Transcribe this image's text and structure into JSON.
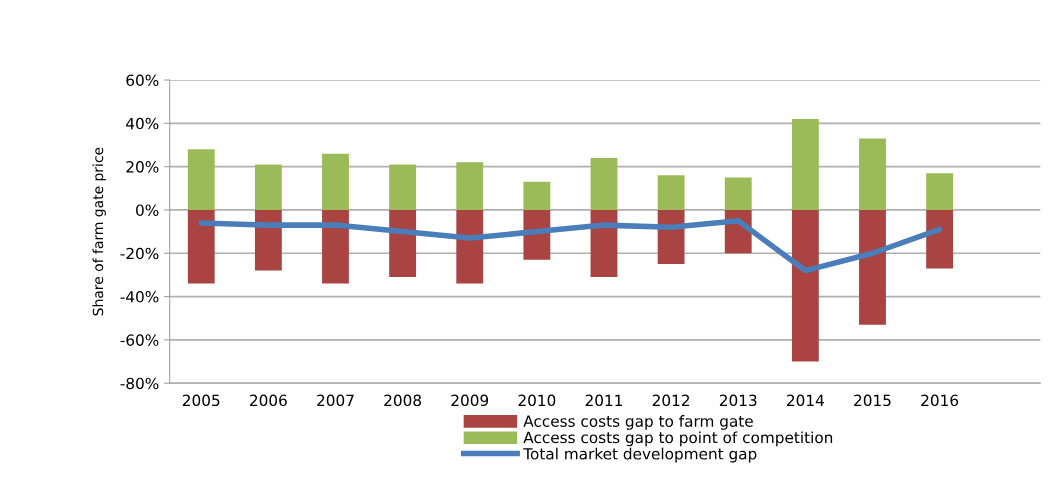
{
  "chart_data": {
    "type": "bar",
    "stacked": true,
    "ylabel": "Share of farm gate price",
    "categories": [
      "2005",
      "2006",
      "2007",
      "2008",
      "2009",
      "2010",
      "2011",
      "2012",
      "2013",
      "2014",
      "2015",
      "2016"
    ],
    "series": [
      {
        "name": "Access costs gap to farm gate",
        "color": "#a94442",
        "values": [
          -34,
          -28,
          -34,
          -31,
          -34,
          -23,
          -31,
          -25,
          -20,
          -70,
          -53,
          -27
        ]
      },
      {
        "name": "Access costs gap to point of competition",
        "color": "#9bbb59",
        "values": [
          28,
          21,
          26,
          21,
          22,
          13,
          24,
          16,
          15,
          42,
          33,
          17
        ]
      },
      {
        "name": "Total market development gap",
        "type": "line",
        "color": "#4a7ebb",
        "values": [
          -6,
          -7,
          -7,
          -10,
          -13,
          -10,
          -7,
          -8,
          -5,
          -28,
          -20,
          -9
        ]
      }
    ],
    "ylim": [
      -80,
      60
    ],
    "yticks": [
      {
        "value": -80,
        "label": "-80%"
      },
      {
        "value": -60,
        "label": "-60%"
      },
      {
        "value": -40,
        "label": "-40%"
      },
      {
        "value": -20,
        "label": "-20%"
      },
      {
        "value": 0,
        "label": "0%"
      },
      {
        "value": 20,
        "label": "20%"
      },
      {
        "value": 40,
        "label": "40%"
      },
      {
        "value": 60,
        "label": "60%"
      }
    ],
    "grid": "y",
    "legend": "bottom"
  }
}
